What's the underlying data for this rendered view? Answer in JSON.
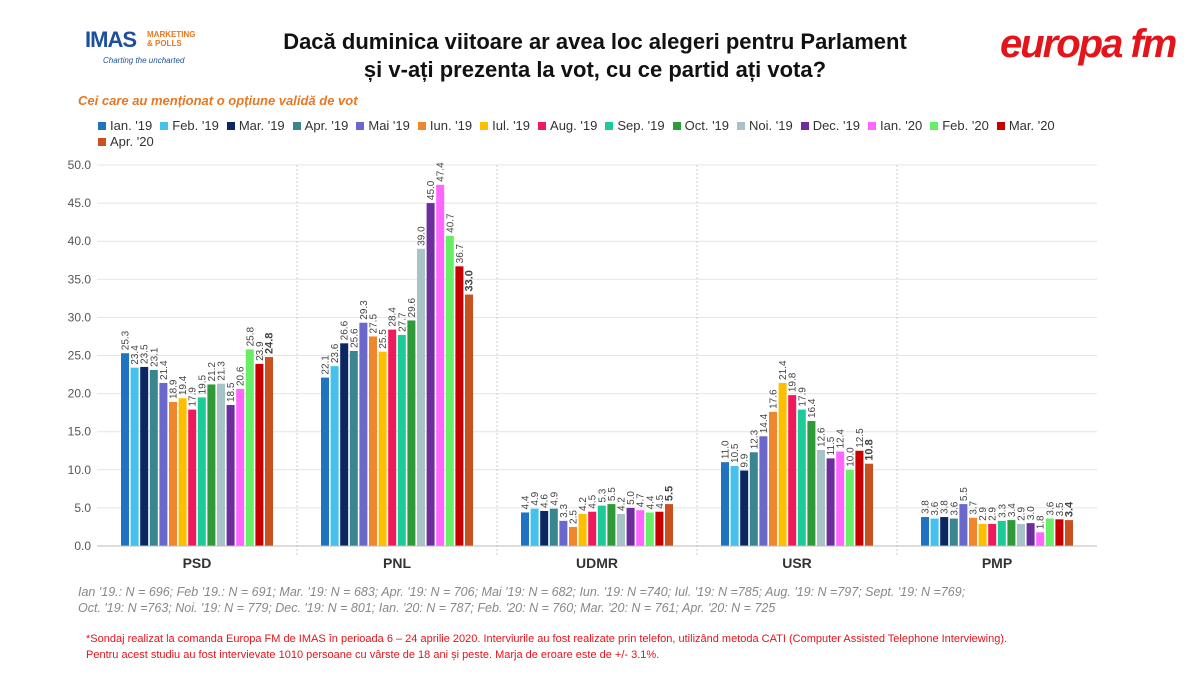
{
  "header": {
    "title_line1": "Dacă duminica viitoare ar avea loc alegeri pentru Parlament",
    "title_line2": "și v-ați prezenta la vot, cu ce partid ați vota?",
    "subtitle": "Cei care au menționat o opțiune validă de vot",
    "imas_logo": "IMAS",
    "imas_tag1": "MARKETING",
    "imas_tag2": "& POLLS",
    "imas_slogan": "Charting the uncharted",
    "europa_logo": "europa fm"
  },
  "chart_data": {
    "type": "bar",
    "title": "",
    "xlabel": "",
    "ylabel": "",
    "ylim": [
      0,
      50
    ],
    "yticks": [
      "0.0",
      "5.0",
      "10.0",
      "15.0",
      "20.0",
      "25.0",
      "30.0",
      "35.0",
      "40.0",
      "45.0",
      "50.0"
    ],
    "grid": true,
    "legend_position": "top",
    "categories": [
      "PSD",
      "PNL",
      "UDMR",
      "USR",
      "PMP"
    ],
    "series": [
      {
        "name": "Ian. '19",
        "color": "#1f74c2",
        "values": [
          25.3,
          22.1,
          4.4,
          11.0,
          3.8
        ]
      },
      {
        "name": "Feb. '19",
        "color": "#45c1ee",
        "values": [
          23.4,
          23.6,
          4.9,
          10.5,
          3.6
        ]
      },
      {
        "name": "Mar. '19",
        "color": "#0b2762",
        "values": [
          23.5,
          26.6,
          4.6,
          9.9,
          3.8
        ]
      },
      {
        "name": "Apr. '19",
        "color": "#3a868e",
        "values": [
          23.1,
          25.6,
          4.9,
          12.3,
          3.6
        ]
      },
      {
        "name": "Mai '19",
        "color": "#6b68cc",
        "values": [
          21.4,
          29.3,
          3.3,
          14.4,
          5.5
        ]
      },
      {
        "name": "Iun. '19",
        "color": "#f0872e",
        "values": [
          18.9,
          27.5,
          2.5,
          17.6,
          3.7
        ]
      },
      {
        "name": "Iul. '19",
        "color": "#ffbf00",
        "values": [
          19.4,
          25.5,
          4.2,
          21.4,
          2.9
        ]
      },
      {
        "name": "Aug. '19",
        "color": "#ee1a5c",
        "values": [
          17.9,
          28.4,
          4.5,
          19.8,
          2.9
        ]
      },
      {
        "name": "Sep. '19",
        "color": "#1ccb97",
        "values": [
          19.5,
          27.7,
          5.3,
          17.9,
          3.3
        ]
      },
      {
        "name": "Oct. '19",
        "color": "#2f9a3a",
        "values": [
          21.2,
          29.6,
          5.5,
          16.4,
          3.4
        ]
      },
      {
        "name": "Noi. '19",
        "color": "#a7c3c7",
        "values": [
          21.3,
          39.0,
          4.2,
          12.6,
          2.9
        ]
      },
      {
        "name": "Dec. '19",
        "color": "#6d2d9e",
        "values": [
          18.5,
          45.0,
          5.0,
          11.5,
          3.0
        ]
      },
      {
        "name": "Ian. '20",
        "color": "#ff66ff",
        "values": [
          20.6,
          47.4,
          4.7,
          12.4,
          1.8
        ]
      },
      {
        "name": "Feb. '20",
        "color": "#66ef66",
        "values": [
          25.8,
          40.7,
          4.4,
          10.0,
          3.6
        ]
      },
      {
        "name": "Mar. '20",
        "color": "#c80000",
        "values": [
          23.9,
          36.7,
          4.5,
          12.5,
          3.5
        ]
      },
      {
        "name": "Apr. '20",
        "color": "#c9501f",
        "values": [
          24.8,
          33.0,
          5.5,
          10.8,
          3.4
        ]
      }
    ]
  },
  "notes": {
    "line1": "Ian '19.: N = 696; Feb '19.: N = 691; Mar. '19: N = 683; Apr. '19: N = 706; Mai '19: N = 682; Iun. '19: N =740; Iul. '19: N =785; Aug. '19: N =797; Sept. '19: N =769;",
    "line2": "Oct. '19: N =763; Noi. '19: N = 779; Dec. '19: N = 801; Ian. '20: N = 787; Feb. '20: N = 760; Mar. '20: N = 761; Apr. '20: N = 725"
  },
  "footnote": {
    "line1": "*Sondaj realizat la comanda Europa FM de IMAS în perioada  6 – 24 aprilie 2020. Interviurile au fost realizate prin telefon, utilizând metoda CATI (Computer Assisted Telephone Interviewing).",
    "line2": "Pentru acest studiu au fost intervievate 1010 persoane cu vârste de 18 ani și peste. Marja de eroare este de +/- 3.1%."
  }
}
